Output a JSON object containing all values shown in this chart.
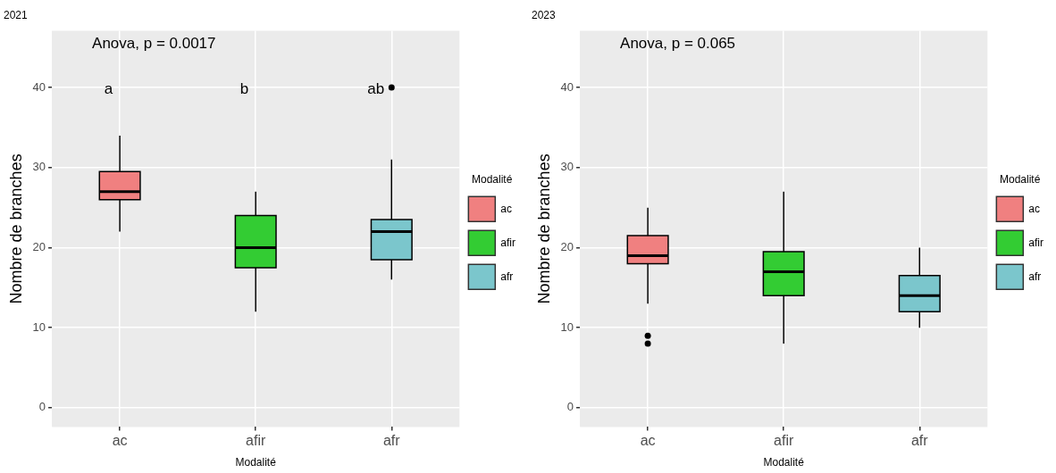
{
  "chart_data": [
    {
      "type": "box",
      "title": "2021",
      "xlabel": "Modalité",
      "ylabel": "Nombre de branches",
      "legend_title": "Modalité",
      "legend": "right",
      "grid": true,
      "categories": [
        "ac",
        "afir",
        "afr"
      ],
      "series": [
        {
          "name": "ac",
          "color": "#f08080",
          "boxes": [
            {
              "low": 22,
              "q1": 26,
              "median": 27,
              "q3": 29.5,
              "high": 34
            },
            null,
            null
          ]
        },
        {
          "name": "afir",
          "color": "#33cc33",
          "boxes": [
            null,
            {
              "low": 12,
              "q1": 17.5,
              "median": 20,
              "q3": 24,
              "high": 27
            },
            null
          ]
        },
        {
          "name": "afr",
          "color": "#7bc6cc",
          "boxes": [
            null,
            null,
            {
              "low": 16,
              "q1": 18.5,
              "median": 22,
              "q3": 23.5,
              "high": 31,
              "outliers": [
                40
              ]
            }
          ]
        }
      ],
      "ylim": [
        -2.4,
        47.1
      ],
      "yticks": [
        0,
        10,
        20,
        30,
        40
      ],
      "annotations": [
        "Anova, p = 0.0017",
        "a",
        "b",
        "ab"
      ]
    },
    {
      "type": "box",
      "title": "2023",
      "xlabel": "Modalité",
      "ylabel": "Nombre de branches",
      "legend_title": "Modalité",
      "legend": "right",
      "grid": true,
      "categories": [
        "ac",
        "afir",
        "afr"
      ],
      "series": [
        {
          "name": "ac",
          "color": "#f08080",
          "boxes": [
            {
              "low": 13,
              "q1": 18,
              "median": 19,
              "q3": 21.5,
              "high": 25,
              "outliers": [
                9,
                8
              ]
            },
            null,
            null
          ]
        },
        {
          "name": "afir",
          "color": "#33cc33",
          "boxes": [
            null,
            {
              "low": 8,
              "q1": 14,
              "median": 17,
              "q3": 19.5,
              "high": 27
            },
            null
          ]
        },
        {
          "name": "afr",
          "color": "#7bc6cc",
          "boxes": [
            null,
            null,
            {
              "low": 10,
              "q1": 12,
              "median": 14,
              "q3": 16.5,
              "high": 20
            }
          ]
        }
      ],
      "ylim": [
        -2.4,
        47.1
      ],
      "yticks": [
        0,
        10,
        20,
        30,
        40
      ],
      "annotations": [
        "Anova, p = 0.065"
      ]
    }
  ]
}
